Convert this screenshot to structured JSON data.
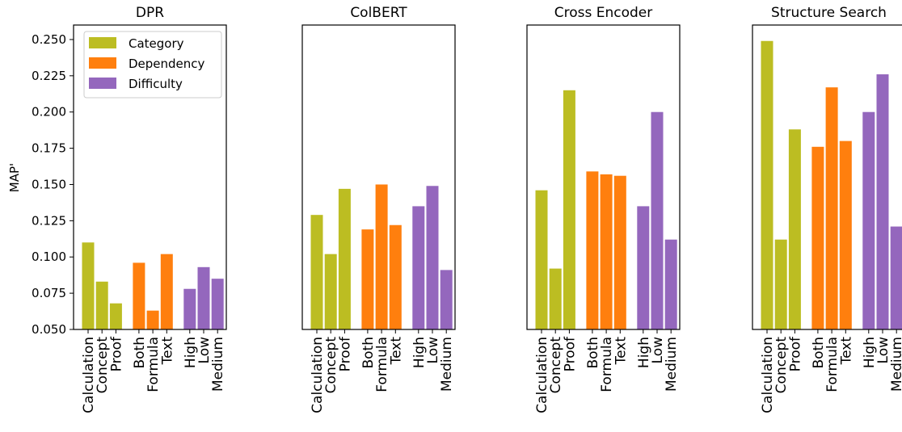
{
  "figure": {
    "ylabel": "MAP'"
  },
  "colors": {
    "Category": "#bcbd22",
    "Dependency": "#ff7f0e",
    "Difficulty": "#9467bd"
  },
  "legend": {
    "placement": "top-left of first panel",
    "entries": [
      "Category",
      "Dependency",
      "Difficulty"
    ]
  },
  "chart_data": [
    {
      "type": "bar",
      "title": "DPR",
      "ylabel": "MAP'",
      "ylim": [
        0.05,
        0.26
      ],
      "yticks": [
        "0.050",
        "0.075",
        "0.100",
        "0.125",
        "0.150",
        "0.175",
        "0.200",
        "0.225",
        "0.250"
      ],
      "groups": [
        {
          "name": "Category",
          "categories": [
            "Calculation",
            "Concept",
            "Proof"
          ],
          "values": [
            0.11,
            0.083,
            0.068
          ]
        },
        {
          "name": "Dependency",
          "categories": [
            "Both",
            "Formula",
            "Text"
          ],
          "values": [
            0.096,
            0.063,
            0.102
          ]
        },
        {
          "name": "Difficulty",
          "categories": [
            "High",
            "Low",
            "Medium"
          ],
          "values": [
            0.078,
            0.093,
            0.085
          ]
        }
      ]
    },
    {
      "type": "bar",
      "title": "ColBERT",
      "ylim": [
        0.05,
        0.26
      ],
      "groups": [
        {
          "name": "Category",
          "categories": [
            "Calculation",
            "Concept",
            "Proof"
          ],
          "values": [
            0.129,
            0.102,
            0.147
          ]
        },
        {
          "name": "Dependency",
          "categories": [
            "Both",
            "Formula",
            "Text"
          ],
          "values": [
            0.119,
            0.15,
            0.122
          ]
        },
        {
          "name": "Difficulty",
          "categories": [
            "High",
            "Low",
            "Medium"
          ],
          "values": [
            0.135,
            0.149,
            0.091
          ]
        }
      ]
    },
    {
      "type": "bar",
      "title": "Cross Encoder",
      "ylim": [
        0.05,
        0.26
      ],
      "groups": [
        {
          "name": "Category",
          "categories": [
            "Calculation",
            "Concept",
            "Proof"
          ],
          "values": [
            0.146,
            0.092,
            0.215
          ]
        },
        {
          "name": "Dependency",
          "categories": [
            "Both",
            "Formula",
            "Text"
          ],
          "values": [
            0.159,
            0.157,
            0.156
          ]
        },
        {
          "name": "Difficulty",
          "categories": [
            "High",
            "Low",
            "Medium"
          ],
          "values": [
            0.135,
            0.2,
            0.112
          ]
        }
      ]
    },
    {
      "type": "bar",
      "title": "Structure Search",
      "ylim": [
        0.05,
        0.26
      ],
      "groups": [
        {
          "name": "Category",
          "categories": [
            "Calculation",
            "Concept",
            "Proof"
          ],
          "values": [
            0.249,
            0.112,
            0.188
          ]
        },
        {
          "name": "Dependency",
          "categories": [
            "Both",
            "Formula",
            "Text"
          ],
          "values": [
            0.176,
            0.217,
            0.18
          ]
        },
        {
          "name": "Difficulty",
          "categories": [
            "High",
            "Low",
            "Medium"
          ],
          "values": [
            0.2,
            0.226,
            0.121
          ]
        }
      ]
    }
  ]
}
